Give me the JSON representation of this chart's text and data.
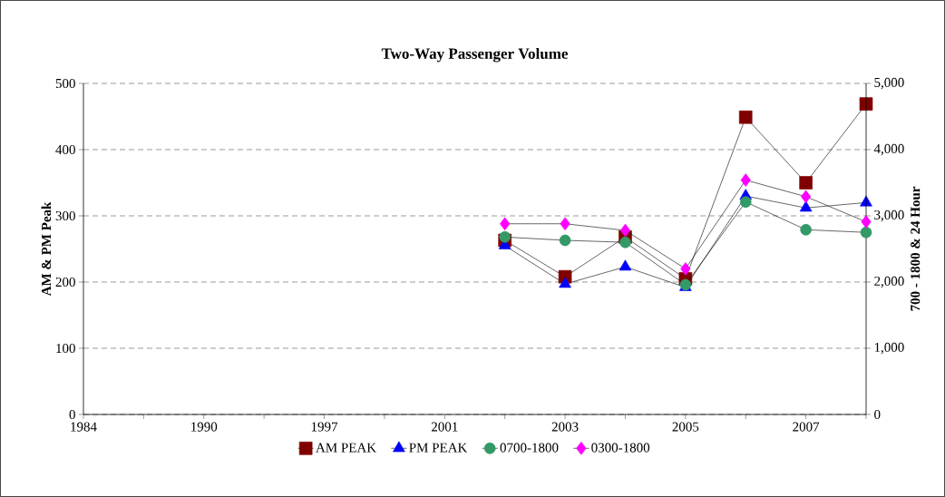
{
  "chart_data": {
    "type": "line",
    "title": "Two-Way Passenger Volume",
    "ylabel": "AM & PM Peak",
    "y2label": "700 - 1800 & 24 Hour",
    "categories": [
      "1984",
      null,
      "1990",
      null,
      "1997",
      null,
      "2001",
      null,
      "2003",
      null,
      "2005",
      null,
      "2007",
      null
    ],
    "series": [
      {
        "name": "AM PEAK",
        "color": "#800000",
        "marker": "square",
        "values": [
          null,
          null,
          null,
          null,
          null,
          null,
          null,
          263,
          208,
          268,
          205,
          449,
          350,
          469
        ]
      },
      {
        "name": "PM PEAK",
        "color": "#0000ff",
        "marker": "triangle",
        "values": [
          null,
          null,
          null,
          null,
          null,
          null,
          null,
          255,
          197,
          223,
          192,
          330,
          312,
          320
        ]
      },
      {
        "name": "0700-1800",
        "color": "#339966",
        "marker": "circle",
        "axis": "y2",
        "values": [
          null,
          null,
          null,
          null,
          null,
          null,
          null,
          2680,
          2630,
          2600,
          1960,
          3210,
          2790,
          2750
        ]
      },
      {
        "name": "0300-1800",
        "color": "#ff00ff",
        "marker": "diamond",
        "axis": "y2",
        "values": [
          null,
          null,
          null,
          null,
          null,
          null,
          null,
          2880,
          2880,
          2780,
          2200,
          3540,
          3290,
          2910
        ]
      }
    ],
    "ylim": [
      0,
      500
    ],
    "yticks": [
      0,
      100,
      200,
      300,
      400,
      500
    ],
    "y2lim": [
      0,
      5000
    ],
    "y2ticks": [
      0,
      {
        "value": 1000,
        "label": "1,000"
      },
      {
        "value": 2000,
        "label": "2,000"
      },
      {
        "value": 3000,
        "label": "3,000"
      },
      {
        "value": 4000,
        "label": "4,000"
      },
      {
        "value": 5000,
        "label": "5,000"
      }
    ],
    "grid": "y",
    "legend": "bottom"
  }
}
